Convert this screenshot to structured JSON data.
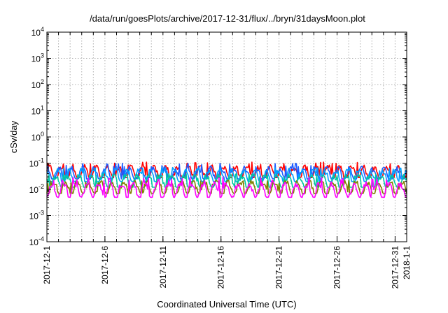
{
  "chart_data": {
    "type": "line",
    "title": "/data/run/goesPlots/archive/2017-12-31/flux/../bryn/31daysMoon.plot",
    "xlabel": "Coordinated Universal Time (UTC)",
    "ylabel": "cSv/day",
    "yscale": "log",
    "ylim": [
      0.0001,
      10000
    ],
    "xlim": [
      "2017-12-1",
      "2018-1-1"
    ],
    "grid": true,
    "x_ticks": [
      "2017-12-1",
      "2017-12-6",
      "2017-12-11",
      "2017-12-16",
      "2017-12-21",
      "2017-12-26",
      "2017-12-31",
      "2018-1-1"
    ],
    "y_ticks": [
      {
        "base": "10",
        "exp": "-4"
      },
      {
        "base": "10",
        "exp": "-3"
      },
      {
        "base": "10",
        "exp": "-2"
      },
      {
        "base": "10",
        "exp": "-1"
      },
      {
        "base": "10",
        "exp": "0"
      },
      {
        "base": "10",
        "exp": "1"
      },
      {
        "base": "10",
        "exp": "2"
      },
      {
        "base": "10",
        "exp": "3"
      },
      {
        "base": "10",
        "exp": "4"
      }
    ],
    "series": [
      {
        "color": "#ff0000",
        "level": 0.045,
        "lo": 0.028,
        "hi": 0.11
      },
      {
        "color": "#1e5bff",
        "level": 0.04,
        "lo": 0.025,
        "hi": 0.1
      },
      {
        "color": "#00a0ff",
        "level": 0.032,
        "lo": 0.02,
        "hi": 0.07
      },
      {
        "color": "#00c8a0",
        "level": 0.02,
        "lo": 0.012,
        "hi": 0.04
      },
      {
        "color": "#808000",
        "level": 0.012,
        "lo": 0.007,
        "hi": 0.022
      },
      {
        "color": "#ff00ff",
        "level": 0.01,
        "lo": 0.005,
        "hi": 0.03
      }
    ]
  }
}
